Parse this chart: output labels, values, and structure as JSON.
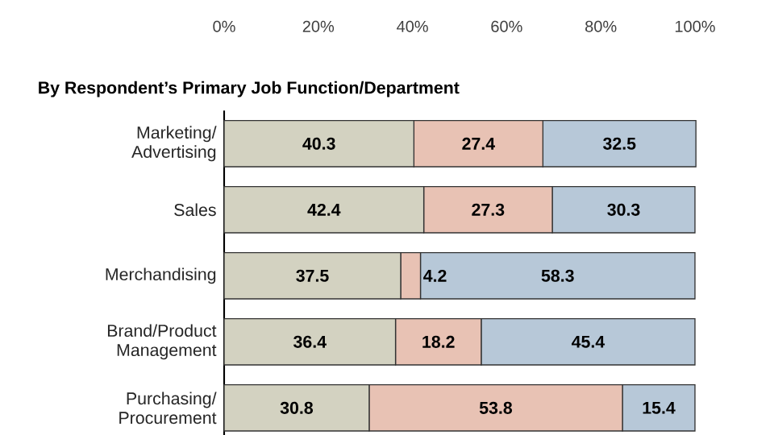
{
  "chart_data": {
    "type": "bar",
    "orientation": "horizontal",
    "stacked": true,
    "title": "By Respondent’s Primary Job Function/Department",
    "categories": [
      "Marketing/ Advertising",
      "Sales",
      "Merchandising",
      "Brand/Product Management",
      "Purchasing/ Procurement"
    ],
    "series": [
      {
        "color": "#d3d2c1",
        "values": [
          40.3,
          42.4,
          37.5,
          36.4,
          30.8
        ]
      },
      {
        "color": "#e8c2b4",
        "values": [
          27.4,
          27.3,
          4.2,
          18.2,
          53.8
        ]
      },
      {
        "color": "#b7c8d8",
        "values": [
          32.5,
          30.3,
          58.3,
          45.4,
          15.4
        ]
      }
    ],
    "xlim": [
      0,
      100
    ],
    "xticks": [
      {
        "value": 0,
        "label": "0%"
      },
      {
        "value": 20,
        "label": "20%"
      },
      {
        "value": 40,
        "label": "40%"
      },
      {
        "value": 60,
        "label": "60%"
      },
      {
        "value": 80,
        "label": "80%"
      },
      {
        "value": 100,
        "label": "100%"
      }
    ],
    "data_labels": true,
    "grid": false
  }
}
